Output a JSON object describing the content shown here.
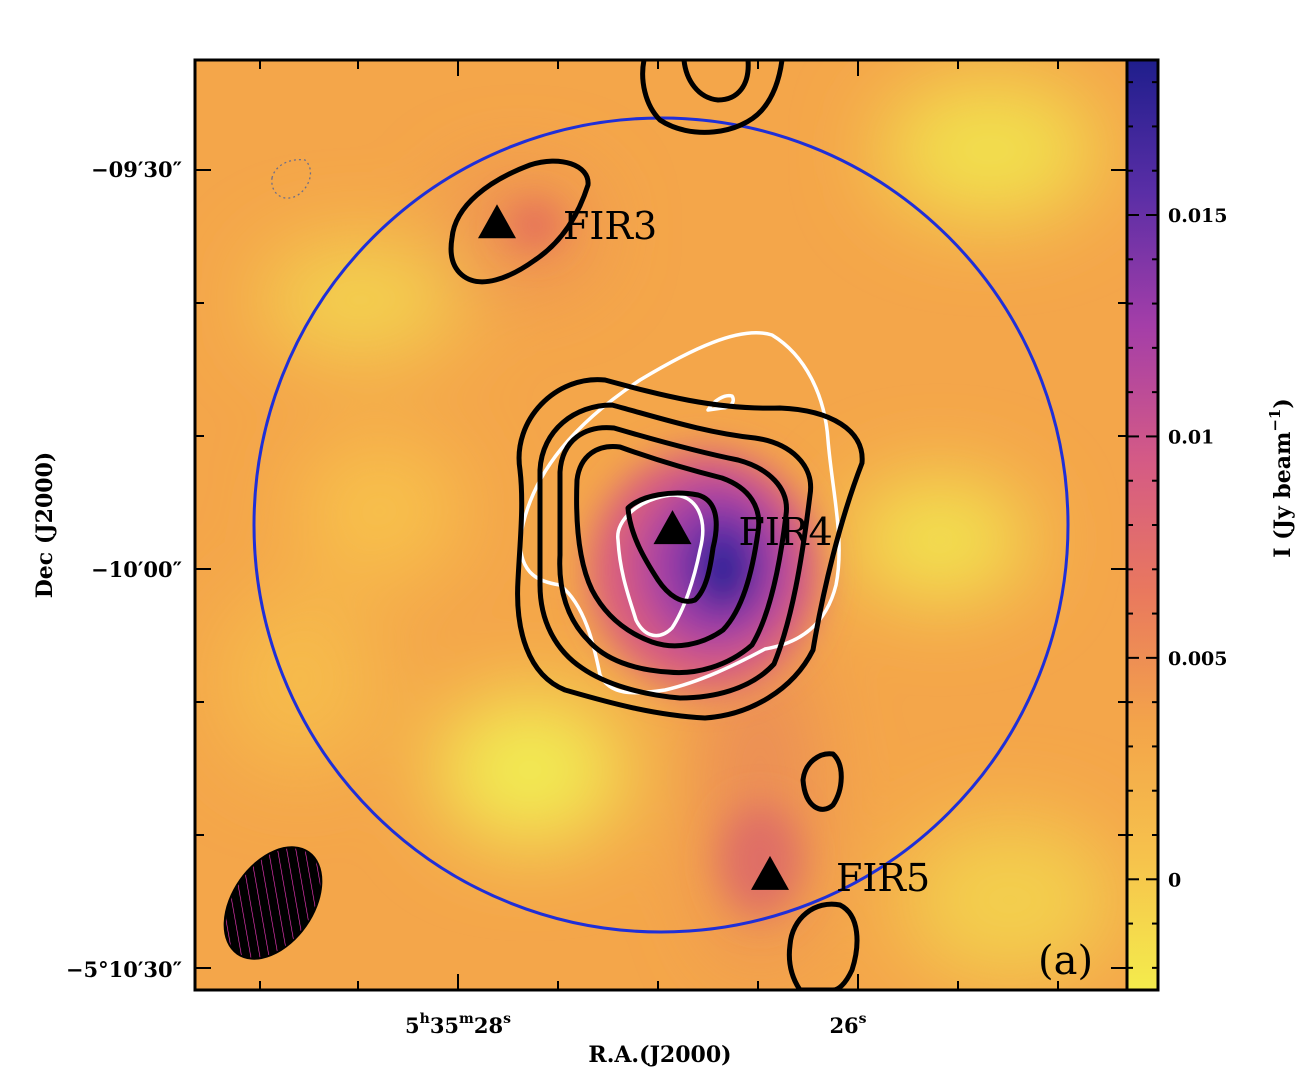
{
  "chart_data": {
    "type": "heatmap",
    "panel_label": "(a)",
    "xlabel": "R.A.(J2000)",
    "ylabel": "Dec (J2000)",
    "x_ticks": [
      {
        "h": "5",
        "m": "35",
        "s": "28",
        "label": "5h35m28s"
      },
      {
        "s": "26",
        "label": "26s"
      }
    ],
    "y_ticks": [
      {
        "label": "−09′30″",
        "dec_arcsec": -30
      },
      {
        "label": "−10′00″",
        "dec_arcsec": -60
      },
      {
        "label": "−5°10′30″",
        "dec_arcsec": -90
      }
    ],
    "colorbar": {
      "title_prefix": "I (Jy beam",
      "title_exp": "−1",
      "title_suffix": ")",
      "min": -0.0025,
      "max": 0.0185,
      "ticks": [
        {
          "value": 0,
          "label": "0"
        },
        {
          "value": 0.005,
          "label": "0.005"
        },
        {
          "value": 0.01,
          "label": "0.01"
        },
        {
          "value": 0.015,
          "label": "0.015"
        }
      ],
      "colors": [
        "#f4ec4c",
        "#f6c24c",
        "#f3a44a",
        "#e9785e",
        "#d45a86",
        "#a43ea8",
        "#5a2ea6",
        "#1f1e8c"
      ]
    },
    "sources": [
      {
        "name": "FIR3",
        "ra_offset_s": 0.2,
        "dec_offset_arcsec": -34
      },
      {
        "name": "FIR4",
        "ra_offset_s": 1.1,
        "dec_offset_arcsec": -57
      },
      {
        "name": "FIR5",
        "ra_offset_s": 1.6,
        "dec_offset_arcsec": -83
      }
    ],
    "primary_beam_color": "#1f2fd8",
    "black_contour_color": "#000000",
    "white_contour_color": "#ffffff",
    "synthesized_beam": "hatched ellipse, bottom-left"
  }
}
